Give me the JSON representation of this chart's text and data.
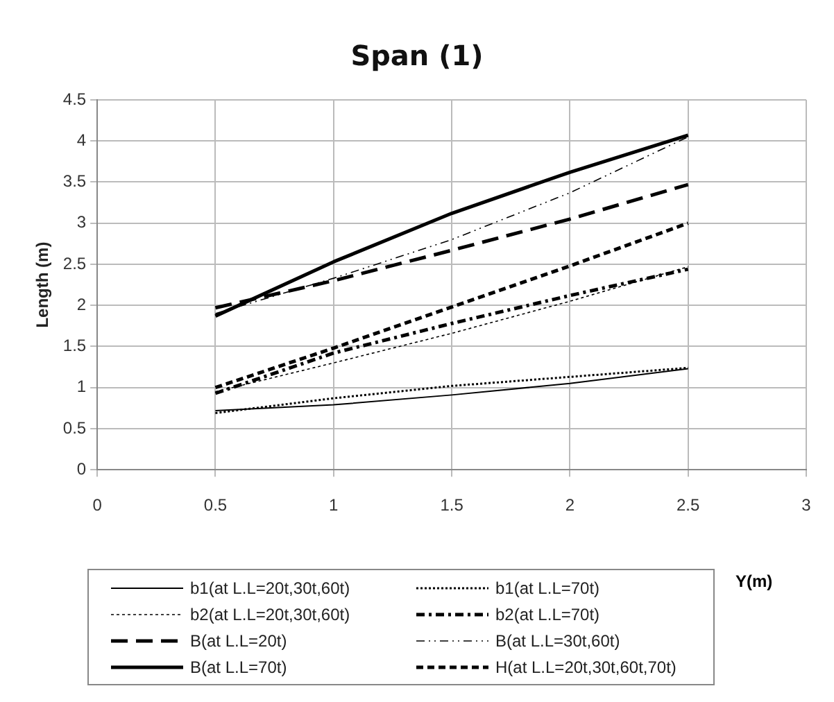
{
  "chart_data": {
    "type": "line",
    "title": "Span (1)",
    "xlabel": "Y(m)",
    "ylabel": "Length (m)",
    "x": [
      0.5,
      1,
      1.5,
      2,
      2.5
    ],
    "series": [
      {
        "name": "b1(at L.L=20t,30t,60t)",
        "color": "#000000",
        "line_style": "solid",
        "values": [
          0.72,
          0.79,
          0.91,
          1.05,
          1.23
        ]
      },
      {
        "name": "b1(at L.L=70t)",
        "color": "#000000",
        "line_style": "dotted",
        "values": [
          0.69,
          0.87,
          1.02,
          1.13,
          1.24
        ]
      },
      {
        "name": "b2(at L.L=20t,30t,60t)",
        "color": "#000000",
        "line_style": "dotted",
        "values": [
          0.95,
          1.3,
          1.66,
          2.05,
          2.47
        ]
      },
      {
        "name": "b2(at L.L=70t)",
        "color": "#000000",
        "line_style": "dashed",
        "values": [
          0.93,
          1.42,
          1.78,
          2.12,
          2.44
        ]
      },
      {
        "name": "B(at L.L=20t)",
        "color": "#000000",
        "line_style": "dashed",
        "values": [
          1.97,
          2.3,
          2.67,
          3.05,
          3.47
        ]
      },
      {
        "name": "B(at L.L=30t,60t)",
        "color": "#000000",
        "line_style": "dashed",
        "values": [
          1.9,
          2.33,
          2.8,
          3.37,
          4.05
        ]
      },
      {
        "name": "B(at L.L=70t)",
        "color": "#000000",
        "line_style": "solid",
        "values": [
          1.87,
          2.53,
          3.12,
          3.62,
          4.07
        ]
      },
      {
        "name": "H(at L.L=20t,30t,60t,70t)",
        "color": "#000000",
        "line_style": "dashed",
        "values": [
          1.0,
          1.48,
          1.98,
          2.48,
          3.0
        ]
      }
    ],
    "xlim": [
      0,
      3
    ],
    "xticks": [
      0,
      0.5,
      1,
      1.5,
      2,
      2.5,
      3
    ],
    "ylim": [
      0,
      4.5
    ],
    "yticks": [
      0,
      0.5,
      1,
      1.5,
      2,
      2.5,
      3,
      3.5,
      4,
      4.5
    ],
    "grid": true,
    "legend": "bottom",
    "marker": "none"
  }
}
